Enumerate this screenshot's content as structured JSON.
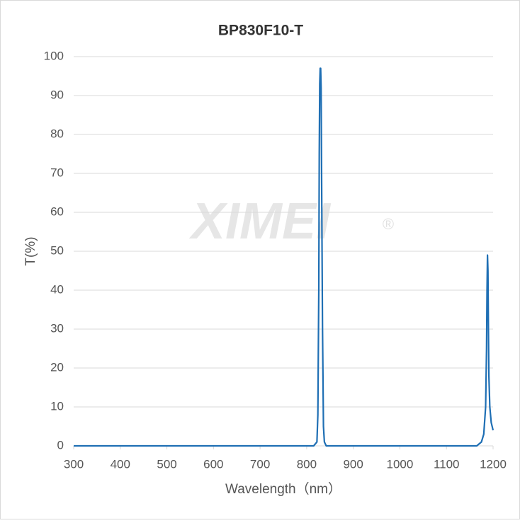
{
  "chart_data": {
    "type": "line",
    "title": "BP830F10-T",
    "watermark": "XIMEI",
    "watermark_mark": "®",
    "x_label": "Wavelength（nm）",
    "y_label": "T(%)",
    "xlim": [
      300,
      1200
    ],
    "xticks": [
      300,
      400,
      500,
      600,
      700,
      800,
      900,
      1000,
      1100,
      1200
    ],
    "ylim": [
      0,
      100
    ],
    "yticks": [
      0,
      10,
      20,
      30,
      40,
      50,
      60,
      70,
      80,
      90,
      100
    ],
    "grid": true,
    "series": [
      {
        "name": "T",
        "color": "#1f6fb4",
        "x": [
          300,
          815,
          822,
          824,
          826,
          827,
          828,
          829,
          830,
          831,
          832,
          834,
          836,
          838,
          842,
          1165,
          1175,
          1180,
          1184,
          1186,
          1187,
          1188,
          1189,
          1190,
          1191,
          1193,
          1196,
          1200
        ],
        "values": [
          0,
          0,
          1,
          8,
          40,
          75,
          93,
          97,
          97,
          92,
          70,
          30,
          5,
          1,
          0,
          0,
          1,
          3,
          10,
          25,
          40,
          49,
          45,
          30,
          18,
          10,
          6,
          4
        ]
      }
    ]
  }
}
